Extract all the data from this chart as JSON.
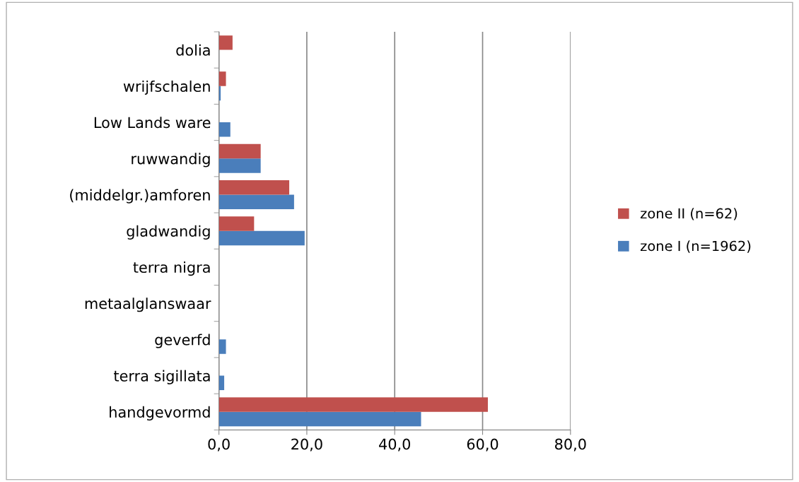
{
  "chart_data": {
    "type": "bar",
    "orientation": "horizontal",
    "categories": [
      "dolia",
      "wrijfschalen",
      "Low Lands ware",
      "ruwwandig",
      "(middelgr.)amforen",
      "gladwandig",
      "terra nigra",
      "metaalglanswaar",
      "geverfd",
      "terra sigillata",
      "handgevormd"
    ],
    "series": [
      {
        "name": "zone I (n=1962)",
        "color": "#4a7ebb",
        "values": [
          null,
          0.4,
          2.6,
          9.5,
          17.1,
          19.5,
          null,
          null,
          1.6,
          1.2,
          46.0
        ]
      },
      {
        "name": "zone II (n=62)",
        "color": "#c0504d",
        "values": [
          3.1,
          1.6,
          null,
          9.5,
          16.0,
          8.0,
          null,
          null,
          null,
          null,
          61.2
        ]
      }
    ],
    "xlim": [
      0,
      80
    ],
    "xticks": [
      {
        "value": 0,
        "label": "0,0"
      },
      {
        "value": 20,
        "label": "20,0"
      },
      {
        "value": 40,
        "label": "40,0"
      },
      {
        "value": 60,
        "label": "60,0"
      },
      {
        "value": 80,
        "label": "80,0"
      }
    ],
    "grid": "x",
    "legend": "right"
  }
}
